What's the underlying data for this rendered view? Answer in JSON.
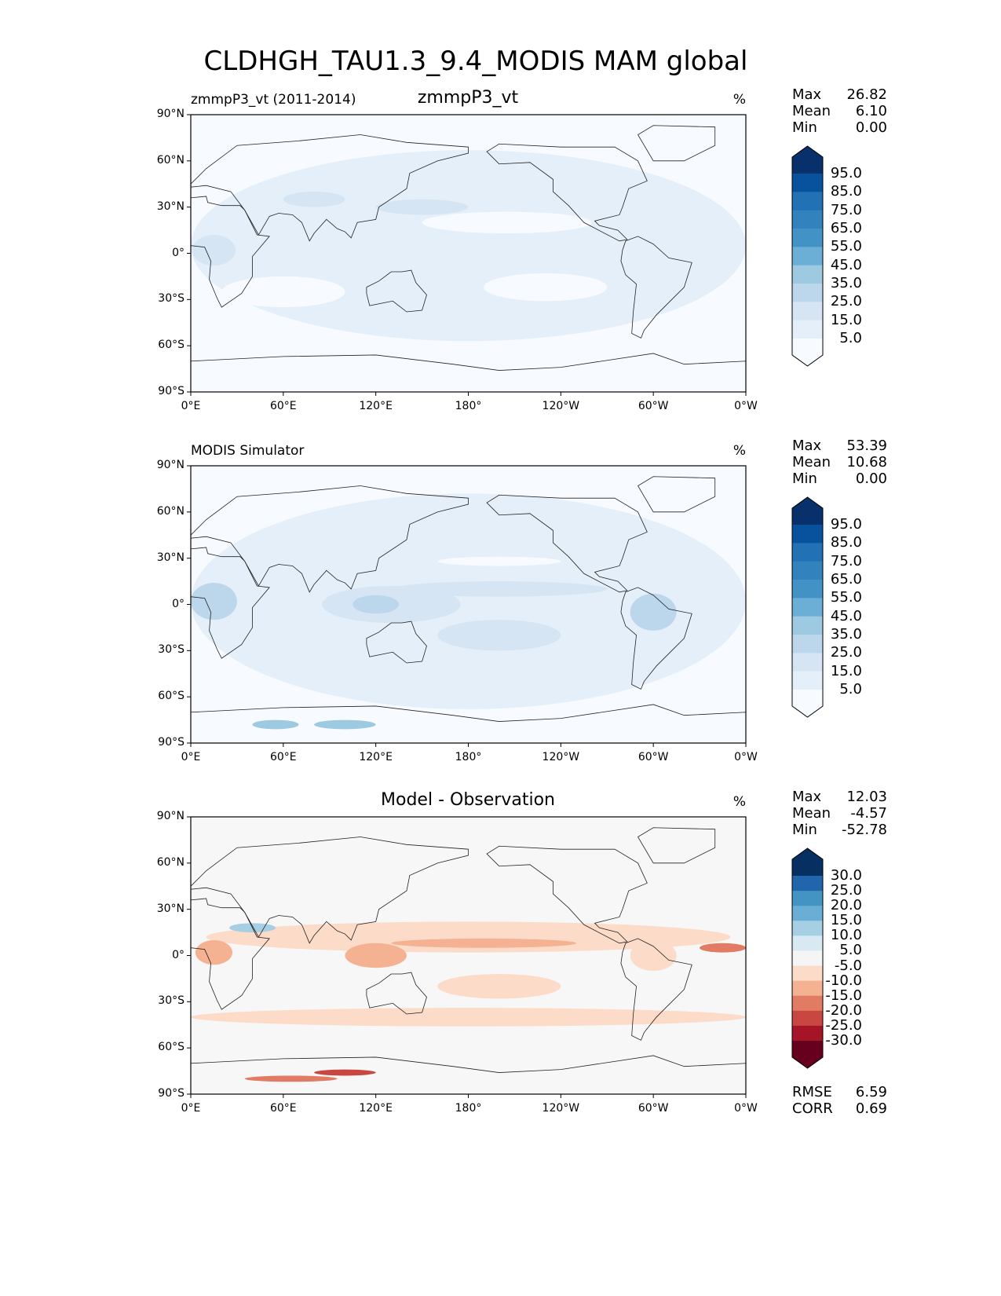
{
  "chart_data": {
    "type": "heatmap",
    "title": "CLDHGH_TAU1.3_9.4_MODIS MAM global",
    "xticks": [
      "0°E",
      "60°E",
      "120°E",
      "180°",
      "120°W",
      "60°W",
      "0°W"
    ],
    "yticks": [
      "90°N",
      "60°N",
      "30°N",
      "0°",
      "30°S",
      "60°S",
      "90°S"
    ],
    "xlim_lon": [
      0,
      360
    ],
    "ylim_lat": [
      -90,
      90
    ],
    "panels": [
      {
        "left_title": "zmmpP3_vt (2011-2014)",
        "center_title": "zmmpP3_vt",
        "units": "%",
        "stats": [
          {
            "label": "Max",
            "value": "26.82"
          },
          {
            "label": "Mean",
            "value": "6.10"
          },
          {
            "label": "Min",
            "value": "0.00"
          }
        ],
        "colorbar_labels": [
          "95.0",
          "85.0",
          "75.0",
          "65.0",
          "55.0",
          "45.0",
          "35.0",
          "25.0",
          "15.0",
          "5.0"
        ],
        "colorbar_colors": [
          "#08306b",
          "#08519c",
          "#2171b5",
          "#3182bd",
          "#4292c6",
          "#6baed6",
          "#9ecae1",
          "#bcd7eb",
          "#d5e5f4",
          "#e5eff9",
          "#f7fbff"
        ],
        "background": "#f7fbff",
        "regions": [
          {
            "lon": 180,
            "lat": 5,
            "rlon": 180,
            "rlat": 62,
            "color": "#e5eff9"
          },
          {
            "lon": 205,
            "lat": 20,
            "rlon": 55,
            "rlat": 7,
            "color": "#f7fbff"
          },
          {
            "lon": 230,
            "lat": -22,
            "rlon": 40,
            "rlat": 9,
            "color": "#f7fbff"
          },
          {
            "lon": 60,
            "lat": -25,
            "rlon": 40,
            "rlat": 10,
            "color": "#f7fbff"
          },
          {
            "lon": 15,
            "lat": 2,
            "rlon": 14,
            "rlat": 10,
            "color": "#d5e5f4"
          },
          {
            "lon": 80,
            "lat": 35,
            "rlon": 20,
            "rlat": 5,
            "color": "#d5e5f4"
          },
          {
            "lon": 150,
            "lat": 30,
            "rlon": 30,
            "rlat": 5,
            "color": "#d5e5f4"
          }
        ]
      },
      {
        "left_title": "MODIS Simulator",
        "center_title": "",
        "units": "%",
        "stats": [
          {
            "label": "Max",
            "value": "53.39"
          },
          {
            "label": "Mean",
            "value": "10.68"
          },
          {
            "label": "Min",
            "value": "0.00"
          }
        ],
        "colorbar_labels": [
          "95.0",
          "85.0",
          "75.0",
          "65.0",
          "55.0",
          "45.0",
          "35.0",
          "25.0",
          "15.0",
          "5.0"
        ],
        "colorbar_colors": [
          "#08306b",
          "#08519c",
          "#2171b5",
          "#3182bd",
          "#4292c6",
          "#6baed6",
          "#9ecae1",
          "#bcd7eb",
          "#d5e5f4",
          "#e5eff9",
          "#f7fbff"
        ],
        "background": "#f7fbff",
        "regions": [
          {
            "lon": 180,
            "lat": 2,
            "rlon": 180,
            "rlat": 70,
            "color": "#e5eff9"
          },
          {
            "lon": 130,
            "lat": 0,
            "rlon": 45,
            "rlat": 12,
            "color": "#d5e5f4"
          },
          {
            "lon": 200,
            "lat": -20,
            "rlon": 40,
            "rlat": 10,
            "color": "#d5e5f4"
          },
          {
            "lon": 200,
            "lat": 10,
            "rlon": 70,
            "rlat": 5,
            "color": "#d5e5f4"
          },
          {
            "lon": 15,
            "lat": 2,
            "rlon": 15,
            "rlat": 12,
            "color": "#bcd7eb"
          },
          {
            "lon": 300,
            "lat": -5,
            "rlon": 15,
            "rlat": 12,
            "color": "#bcd7eb"
          },
          {
            "lon": 120,
            "lat": 0,
            "rlon": 15,
            "rlat": 6,
            "color": "#bcd7eb"
          },
          {
            "lon": 200,
            "lat": 28,
            "rlon": 40,
            "rlat": 3,
            "color": "#f7fbff"
          },
          {
            "lon": 55,
            "lat": -78,
            "rlon": 15,
            "rlat": 3,
            "color": "#9ecae1"
          },
          {
            "lon": 100,
            "lat": -78,
            "rlon": 20,
            "rlat": 3,
            "color": "#9ecae1"
          }
        ]
      },
      {
        "left_title": "",
        "center_title": "Model - Observation",
        "units": "%",
        "stats": [
          {
            "label": "Max",
            "value": "12.03"
          },
          {
            "label": "Mean",
            "value": "-4.57"
          },
          {
            "label": "Min",
            "value": "-52.78"
          }
        ],
        "colorbar_labels": [
          "30.0",
          "25.0",
          "20.0",
          "15.0",
          "10.0",
          "5.0",
          "-5.0",
          "-10.0",
          "-15.0",
          "-20.0",
          "-25.0",
          "-30.0"
        ],
        "colorbar_colors": [
          "#053061",
          "#2166ac",
          "#4393c3",
          "#6aaed6",
          "#a6cfe4",
          "#d9e9f2",
          "#f5f5f5",
          "#fcdbc9",
          "#f5b293",
          "#e17b63",
          "#c94741",
          "#a51427",
          "#67001f"
        ],
        "background": "#f7f7f7",
        "regions": [
          {
            "lon": 180,
            "lat": 12,
            "rlon": 170,
            "rlat": 10,
            "color": "#fcdbc9"
          },
          {
            "lon": 180,
            "lat": -40,
            "rlon": 180,
            "rlat": 6,
            "color": "#fcdbc9"
          },
          {
            "lon": 200,
            "lat": -20,
            "rlon": 40,
            "rlat": 8,
            "color": "#fcdbc9"
          },
          {
            "lon": 190,
            "lat": 8,
            "rlon": 60,
            "rlat": 3,
            "color": "#f5b293"
          },
          {
            "lon": 120,
            "lat": 0,
            "rlon": 20,
            "rlat": 8,
            "color": "#f5b293"
          },
          {
            "lon": 15,
            "lat": 2,
            "rlon": 12,
            "rlat": 8,
            "color": "#f5b293"
          },
          {
            "lon": 300,
            "lat": 0,
            "rlon": 15,
            "rlat": 10,
            "color": "#fcdbc9"
          },
          {
            "lon": 345,
            "lat": 5,
            "rlon": 15,
            "rlat": 3,
            "color": "#e17b63"
          },
          {
            "lon": 65,
            "lat": -80,
            "rlon": 30,
            "rlat": 2,
            "color": "#e17b63"
          },
          {
            "lon": 100,
            "lat": -76,
            "rlon": 20,
            "rlat": 2,
            "color": "#c94741"
          },
          {
            "lon": 40,
            "lat": 18,
            "rlon": 15,
            "rlat": 3,
            "color": "#a6cfe4"
          }
        ],
        "extra_stats": [
          {
            "label": "RMSE",
            "value": "6.59"
          },
          {
            "label": "CORR",
            "value": "0.69"
          }
        ]
      }
    ]
  }
}
